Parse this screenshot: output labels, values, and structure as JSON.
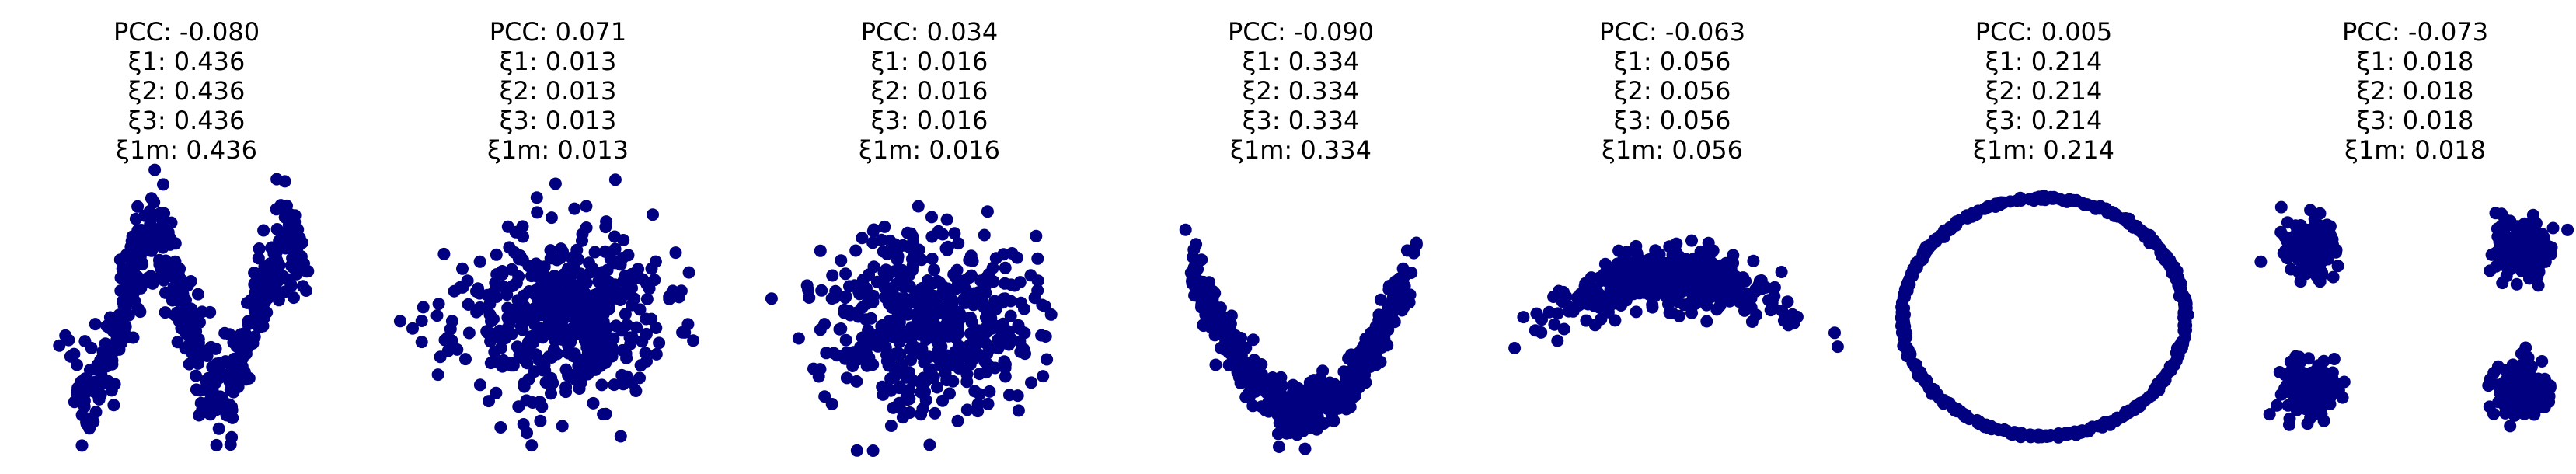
{
  "figure": {
    "point_color": "#000080",
    "background": "#ffffff"
  },
  "chart_data": [
    {
      "type": "scatter",
      "pattern": "w-shape",
      "n_points": 500,
      "title_lines": [
        "PCC: -0.080",
        "ξ1: 0.436",
        "ξ2: 0.436",
        "ξ3: 0.436",
        "ξ1m: 0.436"
      ],
      "xlim": [
        -1.1,
        1.1
      ],
      "ylim": [
        -1.2,
        1.2
      ],
      "axes_visible": false,
      "seed": 11
    },
    {
      "type": "scatter",
      "pattern": "wide-blob",
      "n_points": 500,
      "title_lines": [
        "PCC: 0.071",
        "ξ1: 0.013",
        "ξ2: 0.013",
        "ξ3: 0.013",
        "ξ1m: 0.013"
      ],
      "xlim": [
        -1.1,
        1.1
      ],
      "ylim": [
        -1.2,
        1.2
      ],
      "axes_visible": false,
      "seed": 23
    },
    {
      "type": "scatter",
      "pattern": "blob",
      "n_points": 500,
      "title_lines": [
        "PCC: 0.034",
        "ξ1: 0.016",
        "ξ2: 0.016",
        "ξ3: 0.016",
        "ξ1m: 0.016"
      ],
      "xlim": [
        -1.1,
        1.1
      ],
      "ylim": [
        -1.2,
        1.2
      ],
      "axes_visible": false,
      "seed": 37
    },
    {
      "type": "scatter",
      "pattern": "parabola",
      "n_points": 500,
      "title_lines": [
        "PCC: -0.090",
        "ξ1: 0.334",
        "ξ2: 0.334",
        "ξ3: 0.334",
        "ξ1m: 0.334"
      ],
      "xlim": [
        -1.1,
        1.1
      ],
      "ylim": [
        -0.2,
        1.3
      ],
      "axes_visible": false,
      "seed": 41
    },
    {
      "type": "scatter",
      "pattern": "tilted-band",
      "n_points": 500,
      "title_lines": [
        "PCC: -0.063",
        "ξ1: 0.056",
        "ξ2: 0.056",
        "ξ3: 0.056",
        "ξ1m: 0.056"
      ],
      "xlim": [
        -1.1,
        1.1
      ],
      "ylim": [
        -1.2,
        1.2
      ],
      "axes_visible": false,
      "seed": 53
    },
    {
      "type": "scatter",
      "pattern": "circle",
      "n_points": 500,
      "title_lines": [
        "PCC: 0.005",
        "ξ1: 0.214",
        "ξ2: 0.214",
        "ξ3: 0.214",
        "ξ1m: 0.214"
      ],
      "xlim": [
        -1.1,
        1.1
      ],
      "ylim": [
        -1.15,
        1.15
      ],
      "axes_visible": false,
      "seed": 67
    },
    {
      "type": "scatter",
      "pattern": "four-clusters",
      "n_points": 500,
      "title_lines": [
        "PCC: -0.073",
        "ξ1: 0.018",
        "ξ2: 0.018",
        "ξ3: 0.018",
        "ξ1m: 0.018"
      ],
      "xlim": [
        -1.1,
        1.1
      ],
      "ylim": [
        -1.2,
        1.2
      ],
      "axes_visible": false,
      "seed": 79
    }
  ]
}
